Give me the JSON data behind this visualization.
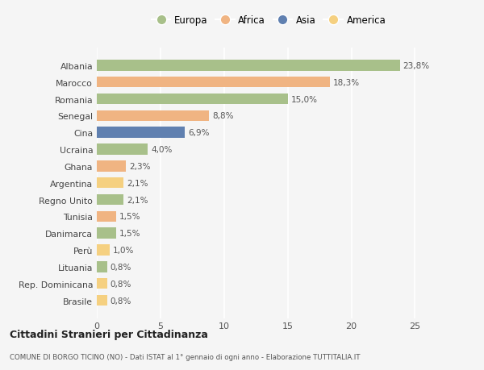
{
  "countries": [
    "Albania",
    "Marocco",
    "Romania",
    "Senegal",
    "Cina",
    "Ucraina",
    "Ghana",
    "Argentina",
    "Regno Unito",
    "Tunisia",
    "Danimarca",
    "Perù",
    "Lituania",
    "Rep. Dominicana",
    "Brasile"
  ],
  "values": [
    23.8,
    18.3,
    15.0,
    8.8,
    6.9,
    4.0,
    2.3,
    2.1,
    2.1,
    1.5,
    1.5,
    1.0,
    0.8,
    0.8,
    0.8
  ],
  "labels": [
    "23,8%",
    "18,3%",
    "15,0%",
    "8,8%",
    "6,9%",
    "4,0%",
    "2,3%",
    "2,1%",
    "2,1%",
    "1,5%",
    "1,5%",
    "1,0%",
    "0,8%",
    "0,8%",
    "0,8%"
  ],
  "continents": [
    "Europa",
    "Africa",
    "Europa",
    "Africa",
    "Asia",
    "Europa",
    "Africa",
    "America",
    "Europa",
    "Africa",
    "Europa",
    "America",
    "Europa",
    "America",
    "America"
  ],
  "continent_colors": {
    "Europa": "#a8c08a",
    "Africa": "#f0b482",
    "Asia": "#6080b0",
    "America": "#f5d080"
  },
  "legend_order": [
    "Europa",
    "Africa",
    "Asia",
    "America"
  ],
  "title": "Cittadini Stranieri per Cittadinanza",
  "subtitle": "COMUNE DI BORGO TICINO (NO) - Dati ISTAT al 1° gennaio di ogni anno - Elaborazione TUTTITALIA.IT",
  "xlim": [
    0,
    27
  ],
  "background_color": "#f5f5f5",
  "grid_color": "#ffffff",
  "bar_height": 0.65
}
